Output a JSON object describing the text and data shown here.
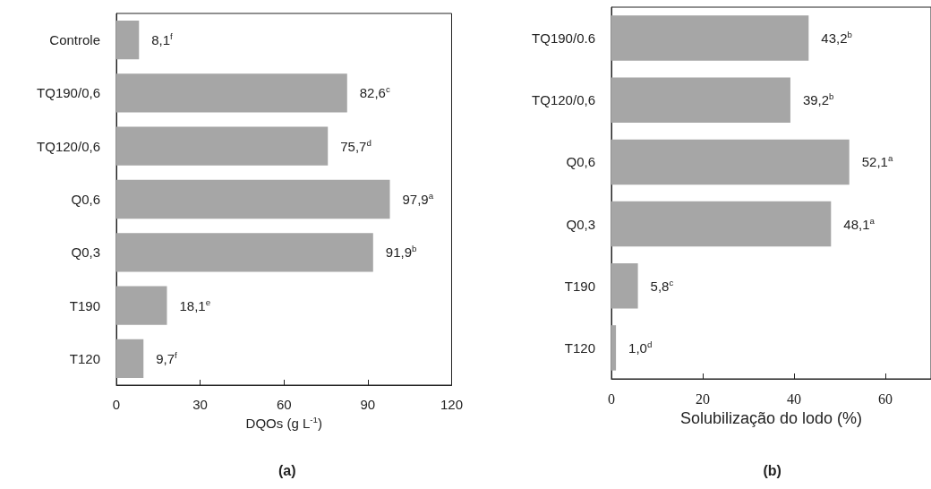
{
  "chart_data": [
    {
      "type": "bar",
      "orientation": "horizontal",
      "title": "(a)",
      "xlabel": "DQOs (g L$^{-1}$)",
      "categories": [
        "Controle",
        "TQ190/0,6",
        "TQ120/0,6",
        "Q0,6",
        "Q0,3",
        "T190",
        "T120"
      ],
      "values": [
        8.1,
        82.6,
        75.7,
        97.9,
        91.9,
        18.1,
        9.7
      ],
      "color": "#a6a6a6",
      "value_labels": [
        "8,1$^{f}$",
        "82,6$^{c}$",
        "75,7$^{d}$",
        "97,9$^{a}$",
        "91,9$^{b}$",
        "18,1$^{e}$",
        "9,7$^{f}$"
      ],
      "xlim": [
        0,
        120
      ],
      "xticks": [
        0,
        30,
        60,
        90,
        120
      ]
    },
    {
      "type": "bar",
      "orientation": "horizontal",
      "title": "(b)",
      "xlabel": "Solubilização do lodo (%)",
      "categories": [
        "TQ190/0.6",
        "TQ120/0,6",
        "Q0,6",
        "Q0,3",
        "T190",
        "T120"
      ],
      "values": [
        43.2,
        39.2,
        52.1,
        48.1,
        5.8,
        1.0
      ],
      "color": "#a6a6a6",
      "value_labels": [
        "43,2$^{b}$",
        "39,2$^{b}$",
        "52,1$^{a}$",
        "48,1$^{a}$",
        "5,8$^{c}$",
        "1,0$^{d}$"
      ],
      "xlim": [
        0,
        70
      ],
      "xticks": [
        0,
        20,
        40,
        60
      ]
    }
  ]
}
